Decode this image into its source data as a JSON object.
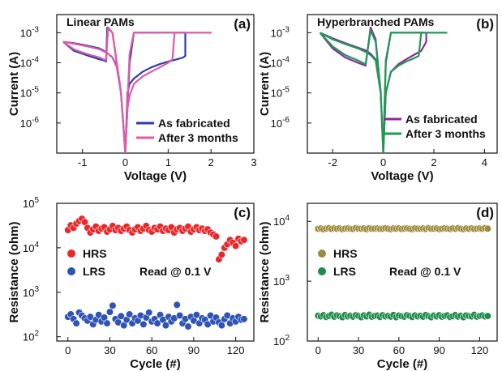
{
  "chart_data": [
    {
      "id": "a",
      "type": "line",
      "title": "Linear PAMs",
      "panel_label": "(a)",
      "xlabel": "Voltage (V)",
      "ylabel": "Current (A)",
      "xlim": [
        -1.6,
        3.0
      ],
      "ylim": [
        1e-07,
        0.004
      ],
      "yscale": "log",
      "xticks": [
        -1,
        0,
        1,
        2,
        3
      ],
      "yticks": [
        {
          "value": 1e-06,
          "label": "10",
          "exp": "-6"
        },
        {
          "value": 1e-05,
          "label": "10",
          "exp": "-5"
        },
        {
          "value": 0.0001,
          "label": "10",
          "exp": "-4"
        },
        {
          "value": 0.001,
          "label": "10",
          "exp": "-3"
        }
      ],
      "legend_position": "bottom-right",
      "series": [
        {
          "name": "As fabricated",
          "color": "#2e3fa8",
          "x": [
            -1.45,
            -1.2,
            -1.0,
            -0.8,
            -0.6,
            -0.5,
            -0.45,
            -0.42,
            -0.3,
            -0.2,
            -0.1,
            -0.05,
            0,
            0.05,
            0.1,
            0.2,
            0.4,
            0.6,
            0.8,
            1.0,
            1.2,
            1.35,
            1.4,
            1.4,
            1.2,
            1.0,
            0.8,
            0.6,
            0.4,
            0.2,
            0.1,
            0,
            -0.05,
            -0.1,
            -0.2,
            -0.3,
            -0.4,
            -0.5,
            -0.6,
            -0.8,
            -1.0,
            -1.2,
            -1.45
          ],
          "y": [
            0.0005,
            0.00025,
            0.0002,
            0.00016,
            0.00013,
            0.00012,
            0.00011,
            0.0015,
            0.001,
            0.0001,
            1e-05,
            1e-06,
            1e-07,
            1e-05,
            2e-05,
            3e-05,
            5e-05,
            7e-05,
            9e-05,
            0.00011,
            0.00013,
            0.00015,
            0.00017,
            0.001,
            0.001,
            0.001,
            0.001,
            0.001,
            0.001,
            0.001,
            0.0001,
            1e-07,
            1e-06,
            1e-05,
            8e-05,
            0.00015,
            0.0002,
            0.00025,
            0.0003,
            0.00035,
            0.0004,
            0.00045,
            0.0005
          ]
        },
        {
          "name": "After 3 months",
          "color": "#e05aa8",
          "x": [
            -1.45,
            -1.2,
            -1.0,
            -0.8,
            -0.6,
            -0.45,
            -0.4,
            -0.3,
            -0.2,
            -0.1,
            -0.05,
            0,
            0.05,
            0.1,
            0.2,
            0.4,
            0.6,
            0.8,
            1.0,
            1.1,
            1.15,
            2.0,
            1.15,
            1.0,
            0.8,
            0.6,
            0.4,
            0.2,
            0.1,
            0,
            -0.05,
            -0.1,
            -0.2,
            -0.3,
            -0.4,
            -0.6,
            -0.8,
            -1.0,
            -1.2,
            -1.45
          ],
          "y": [
            0.0005,
            0.00028,
            0.00022,
            0.00018,
            0.00015,
            0.00012,
            0.0015,
            0.001,
            0.0001,
            1e-05,
            1e-06,
            1e-07,
            3e-06,
            8e-06,
            2e-05,
            3.5e-05,
            5e-05,
            7e-05,
            0.0001,
            0.00013,
            0.001,
            0.001,
            0.001,
            0.001,
            0.001,
            0.001,
            0.001,
            0.001,
            0.0002,
            1e-07,
            1e-06,
            1e-05,
            7e-05,
            0.00015,
            0.0002,
            0.00028,
            0.00033,
            0.00038,
            0.00043,
            0.0005
          ]
        }
      ]
    },
    {
      "id": "b",
      "type": "line",
      "title": "Hyperbranched PAMs",
      "panel_label": "(b)",
      "xlabel": "Voltage (V)",
      "ylabel": "Current (A)",
      "xlim": [
        -3.0,
        4.5
      ],
      "ylim": [
        1e-07,
        0.004
      ],
      "yscale": "log",
      "xticks": [
        -2,
        0,
        2,
        4
      ],
      "yticks": [
        {
          "value": 1e-06,
          "label": "10",
          "exp": "-6"
        },
        {
          "value": 1e-05,
          "label": "10",
          "exp": "-5"
        },
        {
          "value": 0.0001,
          "label": "10",
          "exp": "-4"
        },
        {
          "value": 0.001,
          "label": "10",
          "exp": "-3"
        }
      ],
      "legend_position": "bottom-right",
      "series": [
        {
          "name": "As fabricated",
          "color": "#8e2a9a",
          "x": [
            -2.5,
            -2.0,
            -1.5,
            -1.0,
            -0.7,
            -0.5,
            -0.3,
            -0.1,
            0,
            0.1,
            0.3,
            0.6,
            0.9,
            1.2,
            1.5,
            1.7,
            1.7,
            1.5,
            1.2,
            0.9,
            0.6,
            0.3,
            0.1,
            0,
            -0.1,
            -0.3,
            -0.5,
            -0.7,
            -1.0,
            -1.5,
            -2.0,
            -2.5
          ],
          "y": [
            0.001,
            0.0003,
            0.00015,
            0.0001,
            8e-05,
            0.0015,
            0.0006,
            1e-05,
            1e-07,
            1e-05,
            5e-05,
            9e-05,
            0.00013,
            0.00018,
            0.00025,
            0.0005,
            0.001,
            0.001,
            0.001,
            0.001,
            0.001,
            0.001,
            0.0001,
            1e-07,
            1e-05,
            0.00013,
            0.0002,
            0.00026,
            0.00032,
            0.00045,
            0.00065,
            0.001
          ]
        },
        {
          "name": "After 3 months",
          "color": "#1f9a55",
          "x": [
            -2.5,
            -2.0,
            -1.5,
            -1.0,
            -0.7,
            -0.5,
            -0.3,
            -0.1,
            0,
            0.1,
            0.3,
            0.6,
            0.9,
            1.2,
            1.4,
            1.5,
            2.5,
            1.5,
            1.2,
            0.9,
            0.6,
            0.3,
            0.1,
            0,
            -0.1,
            -0.3,
            -0.5,
            -0.7,
            -1.0,
            -1.5,
            -2.0,
            -2.5
          ],
          "y": [
            0.001,
            0.00035,
            0.00018,
            0.00012,
            9e-05,
            0.0012,
            0.0005,
            1e-05,
            1e-07,
            1e-05,
            5e-05,
            8e-05,
            0.00011,
            0.00014,
            0.00017,
            0.001,
            0.001,
            0.001,
            0.001,
            0.001,
            0.001,
            0.001,
            0.00012,
            1e-07,
            1e-05,
            0.00012,
            0.00018,
            0.00023,
            0.0003,
            0.00042,
            0.0006,
            0.001
          ]
        }
      ]
    },
    {
      "id": "c",
      "type": "scatter",
      "panel_label": "(c)",
      "xlabel": "Cycle (#)",
      "ylabel": "Resistance (ohm)",
      "xlim": [
        -8,
        133
      ],
      "ylim": [
        80,
        100000
      ],
      "yscale": "log",
      "xticks": [
        0,
        30,
        60,
        90,
        120
      ],
      "yticks": [
        {
          "value": 100,
          "label": "10",
          "exp": "2"
        },
        {
          "value": 1000,
          "label": "10",
          "exp": "3"
        },
        {
          "value": 10000,
          "label": "10",
          "exp": "4"
        },
        {
          "value": 100000,
          "label": "10",
          "exp": "5"
        }
      ],
      "annotation": "Read @ 0.1 V",
      "legend_position": "center-left",
      "series": [
        {
          "name": "HRS",
          "color": "#e8282b",
          "x": [
            0,
            2,
            4,
            6,
            8,
            10,
            12,
            14,
            16,
            18,
            20,
            22,
            24,
            26,
            28,
            30,
            32,
            34,
            36,
            38,
            40,
            42,
            44,
            46,
            48,
            50,
            52,
            54,
            56,
            58,
            60,
            62,
            64,
            66,
            68,
            70,
            72,
            74,
            76,
            78,
            80,
            82,
            84,
            86,
            88,
            90,
            92,
            94,
            96,
            98,
            100,
            102,
            104,
            106,
            108,
            110,
            112,
            114,
            116,
            118,
            120,
            122,
            124,
            126
          ],
          "y": [
            25000,
            32000,
            28000,
            35000,
            40000,
            45000,
            38000,
            28000,
            22000,
            26000,
            30000,
            24000,
            27000,
            29000,
            23000,
            26000,
            31000,
            25000,
            28000,
            24000,
            27000,
            30000,
            25000,
            22000,
            26000,
            29000,
            24000,
            27000,
            31000,
            25000,
            23000,
            28000,
            26000,
            30000,
            24000,
            27000,
            25000,
            29000,
            22000,
            26000,
            28000,
            24000,
            27000,
            30000,
            23000,
            26000,
            29000,
            25000,
            27000,
            24000,
            26000,
            22000,
            20000,
            18000,
            5500,
            7000,
            10000,
            12000,
            15000,
            13000,
            11000,
            16000,
            14000,
            15000
          ]
        },
        {
          "name": "LRS",
          "color": "#2f54b5",
          "x": [
            0,
            2,
            4,
            6,
            8,
            10,
            12,
            14,
            16,
            18,
            20,
            22,
            24,
            26,
            28,
            30,
            32,
            34,
            36,
            38,
            40,
            42,
            44,
            46,
            48,
            50,
            52,
            54,
            56,
            58,
            60,
            62,
            64,
            66,
            68,
            70,
            72,
            74,
            76,
            78,
            80,
            82,
            84,
            86,
            88,
            90,
            92,
            94,
            96,
            98,
            100,
            102,
            104,
            106,
            108,
            110,
            112,
            114,
            116,
            118,
            120,
            122,
            124,
            126
          ],
          "y": [
            280,
            320,
            250,
            200,
            350,
            300,
            260,
            230,
            280,
            190,
            240,
            310,
            220,
            270,
            200,
            360,
            500,
            250,
            210,
            290,
            180,
            240,
            320,
            200,
            260,
            230,
            300,
            190,
            270,
            350,
            220,
            250,
            200,
            310,
            240,
            180,
            280,
            220,
            260,
            520,
            300,
            200,
            250,
            170,
            280,
            230,
            310,
            200,
            260,
            240,
            190,
            300,
            220,
            270,
            210,
            180,
            250,
            300,
            200,
            260,
            220,
            280,
            240,
            250
          ]
        }
      ]
    },
    {
      "id": "d",
      "type": "scatter",
      "panel_label": "(d)",
      "xlabel": "Cycle (#)",
      "ylabel": "Resistance (ohm)",
      "xlim": [
        -8,
        133
      ],
      "ylim": [
        100,
        20000
      ],
      "yscale": "log",
      "xticks": [
        0,
        30,
        60,
        90,
        120
      ],
      "yticks": [
        {
          "value": 100,
          "label": "10",
          "exp": "2"
        },
        {
          "value": 1000,
          "label": "10",
          "exp": "3"
        },
        {
          "value": 10000,
          "label": "10",
          "exp": "4"
        }
      ],
      "annotation": "Read @ 0.1 V",
      "legend_position": "center-left",
      "series": [
        {
          "name": "HRS",
          "color": "#a08a3a",
          "x": [
            0,
            2,
            4,
            6,
            8,
            10,
            12,
            14,
            16,
            18,
            20,
            22,
            24,
            26,
            28,
            30,
            32,
            34,
            36,
            38,
            40,
            42,
            44,
            46,
            48,
            50,
            52,
            54,
            56,
            58,
            60,
            62,
            64,
            66,
            68,
            70,
            72,
            74,
            76,
            78,
            80,
            82,
            84,
            86,
            88,
            90,
            92,
            94,
            96,
            98,
            100,
            102,
            104,
            106,
            108,
            110,
            112,
            114,
            116,
            118,
            120,
            122,
            124,
            126
          ],
          "y": [
            7500,
            7600,
            7400,
            7550,
            7700,
            7450,
            7600,
            7500,
            7650,
            7400,
            7550,
            7600,
            7500,
            7450,
            7700,
            7550,
            7500,
            7600,
            7400,
            7650,
            7500,
            7550,
            7600,
            7450,
            7500,
            7700,
            7550,
            7400,
            7600,
            7500,
            7650,
            7450,
            7550,
            7600,
            7500,
            7400,
            7650,
            7550,
            7500,
            7600,
            7450,
            7700,
            7500,
            7550,
            7600,
            7400,
            7500,
            7650,
            7550,
            7450,
            7600,
            7500,
            7700,
            7550,
            7400,
            7600,
            7500,
            7650,
            7450,
            7550,
            7600,
            7500,
            7700,
            7550
          ]
        },
        {
          "name": "LRS",
          "color": "#1f8a4a",
          "x": [
            0,
            2,
            4,
            6,
            8,
            10,
            12,
            14,
            16,
            18,
            20,
            22,
            24,
            26,
            28,
            30,
            32,
            34,
            36,
            38,
            40,
            42,
            44,
            46,
            48,
            50,
            52,
            54,
            56,
            58,
            60,
            62,
            64,
            66,
            68,
            70,
            72,
            74,
            76,
            78,
            80,
            82,
            84,
            86,
            88,
            90,
            92,
            94,
            96,
            98,
            100,
            102,
            104,
            106,
            108,
            110,
            112,
            114,
            116,
            118,
            120,
            122,
            124,
            126
          ],
          "y": [
            265,
            258,
            270,
            252,
            262,
            275,
            255,
            268,
            260,
            250,
            272,
            258,
            264,
            255,
            270,
            262,
            250,
            268,
            258,
            275,
            254,
            262,
            266,
            252,
            270,
            258,
            263,
            256,
            272,
            250,
            266,
            260,
            255,
            270,
            262,
            252,
            268,
            258,
            264,
            255,
            272,
            260,
            250,
            266,
            258,
            270,
            255,
            262,
            268,
            252,
            260,
            272,
            256,
            264,
            250,
            268,
            262,
            258,
            274,
            255,
            262,
            268,
            258,
            262
          ]
        }
      ]
    }
  ]
}
